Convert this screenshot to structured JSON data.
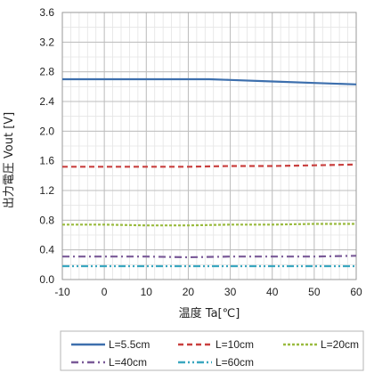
{
  "chart_data": {
    "type": "line",
    "xlabel": "温度 Ta[℃]",
    "ylabel": "出力電圧 Vout [V]",
    "xlim": [
      -10,
      60
    ],
    "ylim": [
      0.0,
      3.6
    ],
    "x_ticks": [
      -10,
      0,
      10,
      20,
      30,
      40,
      50,
      60
    ],
    "y_ticks": [
      "0.0",
      "0.4",
      "0.8",
      "1.2",
      "1.6",
      "2.0",
      "2.4",
      "2.8",
      "3.2",
      "3.6"
    ],
    "x_minor_step": 2,
    "y_minor_step": 0.2,
    "grid": true,
    "legend_position": "bottom",
    "series": [
      {
        "name": "L=5.5cm",
        "color": "#3d6fad",
        "dash": "solid",
        "x": [
          -10,
          0,
          10,
          20,
          25,
          30,
          40,
          50,
          60
        ],
        "y": [
          2.7,
          2.7,
          2.7,
          2.7,
          2.7,
          2.69,
          2.67,
          2.65,
          2.63
        ]
      },
      {
        "name": "L=10cm",
        "color": "#c9403f",
        "dash": "dashed",
        "x": [
          -10,
          0,
          10,
          20,
          30,
          40,
          50,
          60
        ],
        "y": [
          1.52,
          1.52,
          1.52,
          1.52,
          1.53,
          1.53,
          1.54,
          1.55
        ]
      },
      {
        "name": "L=20cm",
        "color": "#9abb3f",
        "dash": "short-dashed",
        "x": [
          -10,
          0,
          10,
          20,
          30,
          40,
          50,
          60
        ],
        "y": [
          0.74,
          0.74,
          0.73,
          0.73,
          0.74,
          0.74,
          0.75,
          0.75
        ]
      },
      {
        "name": "L=40cm",
        "color": "#7a5a98",
        "dash": "dash-dot",
        "x": [
          -10,
          0,
          10,
          20,
          30,
          40,
          50,
          60
        ],
        "y": [
          0.31,
          0.31,
          0.31,
          0.3,
          0.31,
          0.31,
          0.31,
          0.32
        ]
      },
      {
        "name": "L=60cm",
        "color": "#3aa7c0",
        "dash": "dash-dot-dot",
        "x": [
          -10,
          0,
          10,
          20,
          30,
          40,
          50,
          60
        ],
        "y": [
          0.18,
          0.18,
          0.18,
          0.18,
          0.18,
          0.18,
          0.18,
          0.18
        ]
      }
    ]
  }
}
